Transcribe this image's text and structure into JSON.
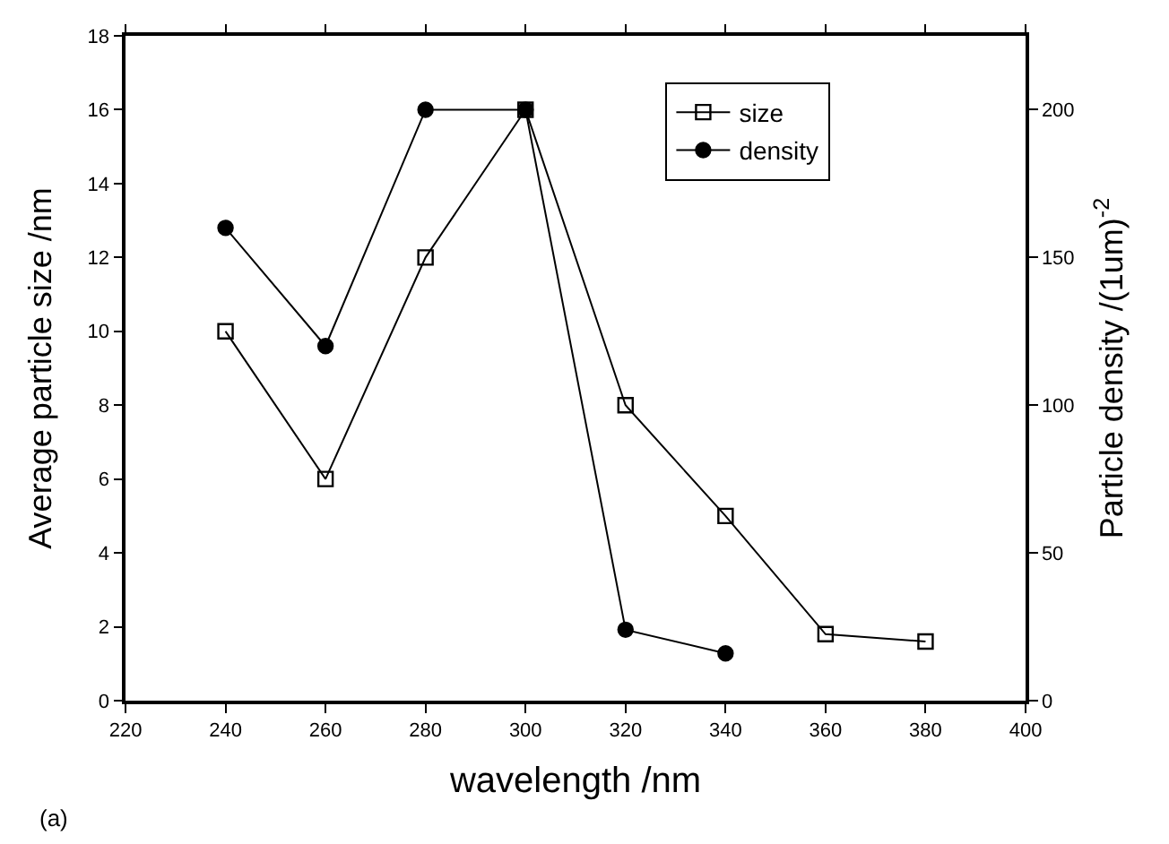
{
  "chart_data": {
    "type": "line",
    "xlabel": "wavelength /nm",
    "ylabel": "Average particle size /nm",
    "y2label": "Particle density /(1um)$^{-2}$",
    "x": [
      240,
      260,
      280,
      300,
      320,
      340,
      360,
      380
    ],
    "series": [
      {
        "name": "size",
        "color": "#000000",
        "marker": "square",
        "values": [
          10,
          6,
          12,
          16,
          8,
          5,
          1.8,
          1.6
        ]
      },
      {
        "name": "density",
        "color": "#000000",
        "marker": "circle",
        "axis": "y2",
        "x": [
          240,
          260,
          280,
          300,
          320,
          340
        ],
        "values": [
          160,
          120,
          200,
          200,
          24,
          16
        ]
      }
    ],
    "xlim": [
      220,
      400
    ],
    "xticks": [
      220,
      240,
      260,
      280,
      300,
      320,
      340,
      360,
      380,
      400
    ],
    "ylim": [
      0,
      18
    ],
    "yticks": [
      0,
      2,
      4,
      6,
      8,
      10,
      12,
      14,
      16,
      18
    ],
    "y2lim": [
      0,
      225
    ],
    "y2ticks": [
      0,
      50,
      100,
      150,
      200
    ],
    "legend": "top right",
    "line_style": "solid",
    "annotations": [
      "(a)"
    ]
  }
}
